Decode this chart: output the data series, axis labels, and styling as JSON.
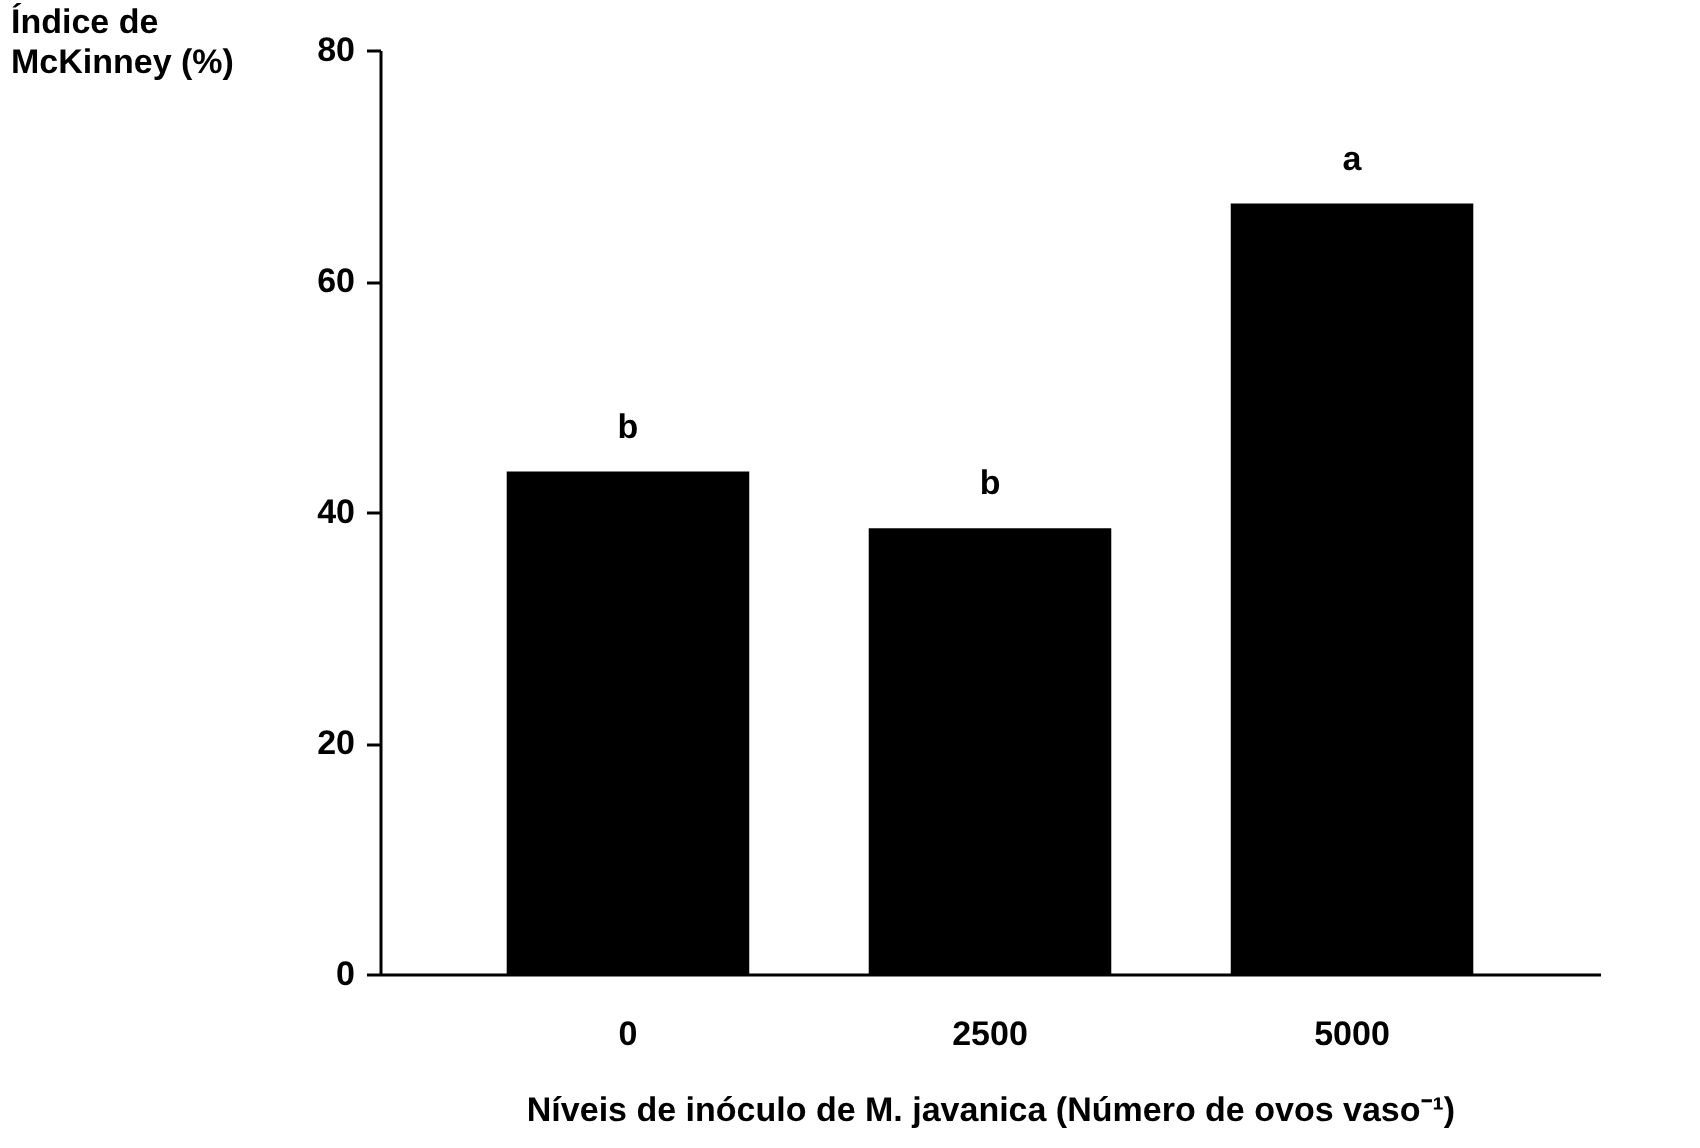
{
  "chart_data": {
    "type": "bar",
    "xlabel": "Níveis de inóculo de M. javanica (Número de ovos vaso⁻¹)",
    "ylabel": "Índice de\nMcKinney (%)",
    "categories": [
      "0",
      "2500",
      "5000"
    ],
    "values": [
      43.5,
      38.6,
      66.7
    ],
    "color": "#000000",
    "ylim": [
      0,
      80
    ],
    "yticks": [
      0,
      20,
      40,
      60,
      80
    ],
    "grid": false,
    "annotations": [
      {
        "text": "b",
        "x": "0",
        "y": 43.5
      },
      {
        "text": "b",
        "x": "2500",
        "y": 38.6
      },
      {
        "text": "a",
        "x": "5000",
        "y": 66.7
      }
    ]
  }
}
